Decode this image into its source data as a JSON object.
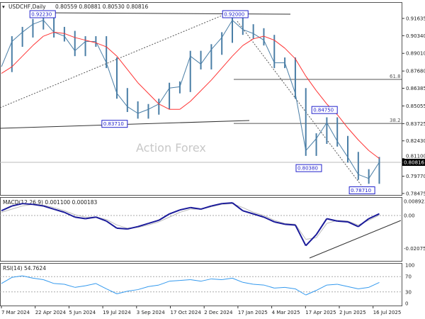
{
  "header": {
    "symbol": "USDCHF,Daily",
    "ohlc": "0.80559 0.80881 0.80530 0.80816"
  },
  "watermark": "Action Forex",
  "colors": {
    "price": "#4a7ea6",
    "ma": "#ff3333",
    "macd": "#1a1a9a",
    "signal": "#bbbbbb",
    "rsi": "#3399ee",
    "label": "#2222cc"
  },
  "chart_data": [
    {
      "type": "line",
      "panel": "price",
      "x_ticks": [
        "7 Mar 2024",
        "22 Apr 2024",
        "5 Jun 2024",
        "19 Jul 2024",
        "3 Sep 2024",
        "17 Oct 2024",
        "2 Dec 2024",
        "17 Jan 2025",
        "4 Mar 2025",
        "17 Apr 2025",
        "2 Jun 2025",
        "16 Jul 2025"
      ],
      "y_ticks": [
        "0.91635",
        "0.90340",
        "0.89010",
        "0.87680",
        "0.86385",
        "0.85055",
        "0.83725",
        "0.82430",
        "0.81100",
        "0.79770",
        "0.78475"
      ],
      "ylim": [
        0.7838,
        0.928
      ],
      "current_price": "0.80816",
      "dates": [
        "2024-03-07",
        "2024-03-21",
        "2024-04-04",
        "2024-04-18",
        "2024-05-02",
        "2024-05-16",
        "2024-05-30",
        "2024-06-13",
        "2024-06-27",
        "2024-07-11",
        "2024-07-25",
        "2024-08-08",
        "2024-08-22",
        "2024-09-05",
        "2024-09-19",
        "2024-10-03",
        "2024-10-17",
        "2024-10-31",
        "2024-11-14",
        "2024-11-28",
        "2024-12-12",
        "2024-12-26",
        "2025-01-09",
        "2025-01-23",
        "2025-02-06",
        "2025-02-20",
        "2025-03-06",
        "2025-03-20",
        "2025-04-03",
        "2025-04-17",
        "2025-05-01",
        "2025-05-15",
        "2025-05-29",
        "2025-06-12",
        "2025-06-26",
        "2025-07-10",
        "2025-07-24"
      ],
      "close": [
        0.88,
        0.899,
        0.906,
        0.912,
        0.915,
        0.906,
        0.903,
        0.892,
        0.899,
        0.899,
        0.883,
        0.86,
        0.85,
        0.845,
        0.848,
        0.852,
        0.864,
        0.865,
        0.888,
        0.882,
        0.893,
        0.902,
        0.915,
        0.908,
        0.905,
        0.9,
        0.883,
        0.883,
        0.86,
        0.817,
        0.826,
        0.838,
        0.824,
        0.812,
        0.799,
        0.796,
        0.8082
      ],
      "ma": [
        0.875,
        0.88,
        0.888,
        0.896,
        0.903,
        0.906,
        0.905,
        0.902,
        0.9,
        0.898,
        0.895,
        0.888,
        0.878,
        0.868,
        0.86,
        0.852,
        0.848,
        0.848,
        0.854,
        0.862,
        0.87,
        0.879,
        0.888,
        0.896,
        0.901,
        0.903,
        0.9,
        0.894,
        0.886,
        0.873,
        0.862,
        0.852,
        0.844,
        0.834,
        0.825,
        0.817,
        0.811
      ],
      "level_labels": [
        {
          "text": "0.92230",
          "date": "2024-05-01",
          "price": 0.9223
        },
        {
          "text": "0.92000",
          "date": "2025-01-13",
          "price": 0.92
        },
        {
          "text": "0.83710",
          "date": "2024-08-05",
          "price": 0.8371
        },
        {
          "text": "0.84750",
          "date": "2025-05-12",
          "price": 0.8475
        },
        {
          "text": "0.80380",
          "date": "2025-04-21",
          "price": 0.8038
        },
        {
          "text": "0.78710",
          "date": "2025-07-01",
          "price": 0.7871
        }
      ],
      "fib_levels": [
        {
          "label": "61.8",
          "price": 0.8705
        },
        {
          "label": "38.2",
          "price": 0.8374
        }
      ]
    },
    {
      "type": "line",
      "panel": "macd",
      "label": "MACD(12,26,9) 0.001100 0.000183",
      "y_ticks": [
        "0.008923",
        "0.00",
        "-0.020759"
      ],
      "ylim": [
        -0.021,
        0.0095
      ],
      "macd": [
        0.003,
        0.006,
        0.0075,
        0.007,
        0.006,
        0.004,
        0.002,
        -0.001,
        -0.002,
        -0.001,
        -0.0035,
        -0.008,
        -0.0085,
        -0.007,
        -0.005,
        -0.003,
        0.001,
        0.0035,
        0.005,
        0.004,
        0.006,
        0.0075,
        0.008,
        0.003,
        0.001,
        -0.001,
        -0.004,
        -0.0055,
        -0.006,
        -0.019,
        -0.012,
        -0.002,
        -0.0035,
        -0.004,
        -0.007,
        -0.002,
        0.0011
      ],
      "signal": [
        0.002,
        0.004,
        0.006,
        0.007,
        0.0065,
        0.005,
        0.003,
        0.0005,
        -0.001,
        -0.001,
        -0.0025,
        -0.006,
        -0.008,
        -0.0075,
        -0.006,
        -0.004,
        -0.001,
        0.002,
        0.004,
        0.004,
        0.0055,
        0.007,
        0.0075,
        0.005,
        0.002,
        0,
        -0.003,
        -0.005,
        -0.0055,
        -0.015,
        -0.014,
        -0.005,
        -0.003,
        -0.0035,
        -0.006,
        -0.003,
        0.0002
      ]
    },
    {
      "type": "line",
      "panel": "rsi",
      "label": "RSI(14) 54.7624",
      "y_ticks": [
        "100",
        "70",
        "30",
        "0"
      ],
      "ylim": [
        0,
        100
      ],
      "rsi": [
        52,
        68,
        72,
        66,
        62,
        52,
        50,
        42,
        46,
        52,
        38,
        25,
        32,
        36,
        44,
        48,
        58,
        60,
        62,
        58,
        64,
        62,
        66,
        55,
        50,
        48,
        40,
        42,
        38,
        22,
        34,
        48,
        50,
        44,
        38,
        42,
        54.8
      ]
    }
  ]
}
